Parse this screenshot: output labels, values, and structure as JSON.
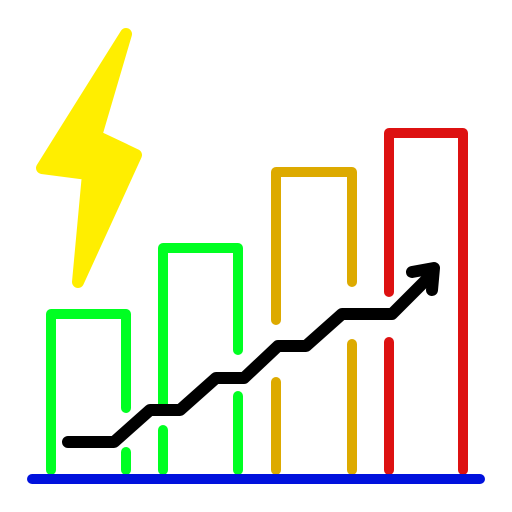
{
  "icon": {
    "name": "energy-growth-chart-icon",
    "bars": [
      {
        "name": "bar-1",
        "level": 0.37,
        "color": "#00ff22"
      },
      {
        "name": "bar-2",
        "level": 0.52,
        "color": "#00ff22"
      },
      {
        "name": "bar-3",
        "level": 0.69,
        "color": "#ddaa00"
      },
      {
        "name": "bar-4",
        "level": 0.85,
        "color": "#dd1111"
      }
    ],
    "colors": {
      "bolt": "#ffee00",
      "baseline": "#0011dd",
      "trend": "#000000",
      "background": "#ffffff"
    },
    "elements": [
      "lightning-bolt-icon",
      "bar-chart",
      "trend-arrow",
      "baseline"
    ]
  }
}
